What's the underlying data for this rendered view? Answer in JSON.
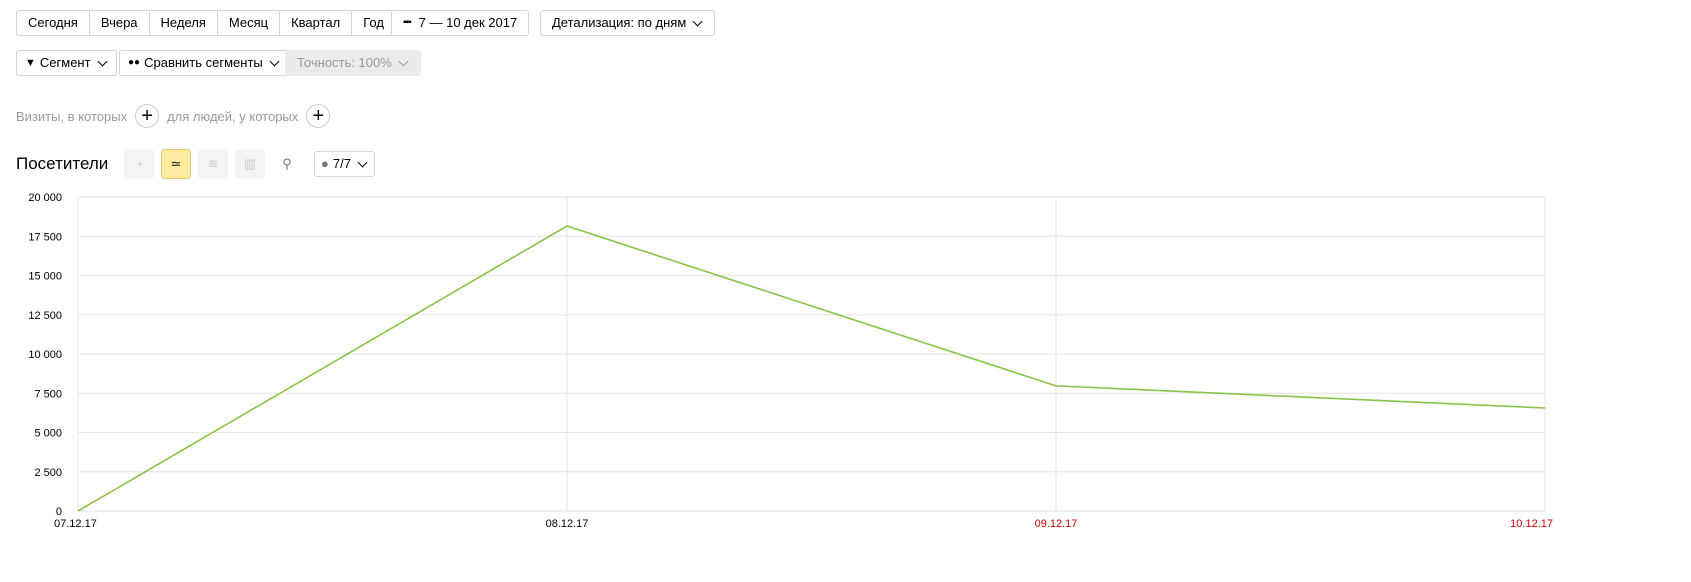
{
  "toolbar": {
    "periods": [
      "Сегодня",
      "Вчера",
      "Неделя",
      "Месяц",
      "Квартал",
      "Год"
    ],
    "date_range": "7 — 10 дек 2017",
    "detail": "Детализация: по дням",
    "segment": "Сегмент",
    "compare": "Сравнить сегменты",
    "accuracy": "Точность: 100%"
  },
  "filters": {
    "visits": "Визиты, в которых",
    "people": "для людей, у которых"
  },
  "report": {
    "title": "Посетители",
    "annotations": "7/7",
    "active_view": "line-chart"
  },
  "chart_data": {
    "type": "line",
    "categories": [
      "07.12.17",
      "08.12.17",
      "09.12.17",
      "10.12.17"
    ],
    "category_colors": [
      "#000000",
      "#000000",
      "#cc0000",
      "#cc0000"
    ],
    "series": [
      {
        "values": [
          0,
          18150,
          7970,
          6560
        ],
        "color": "#8bc34a"
      }
    ],
    "yticks": [
      "0",
      "2 500",
      "5 000",
      "7 500",
      "10 000",
      "12 500",
      "15 000",
      "17 500",
      "20 000"
    ],
    "ylim": [
      0,
      20000
    ],
    "grid": true
  }
}
